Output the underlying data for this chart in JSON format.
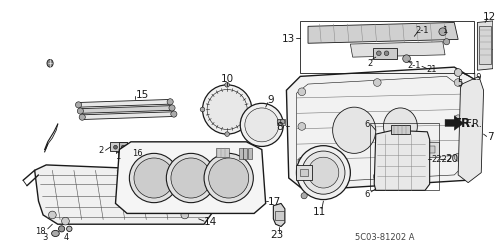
{
  "bg_color": "#ffffff",
  "line_color": "#1a1a1a",
  "diagram_code": "5C03-81202 A",
  "fr_label": "FR.",
  "lw": 0.6,
  "lw_thick": 1.0,
  "label_fs": 7.5,
  "small_fs": 6.0
}
